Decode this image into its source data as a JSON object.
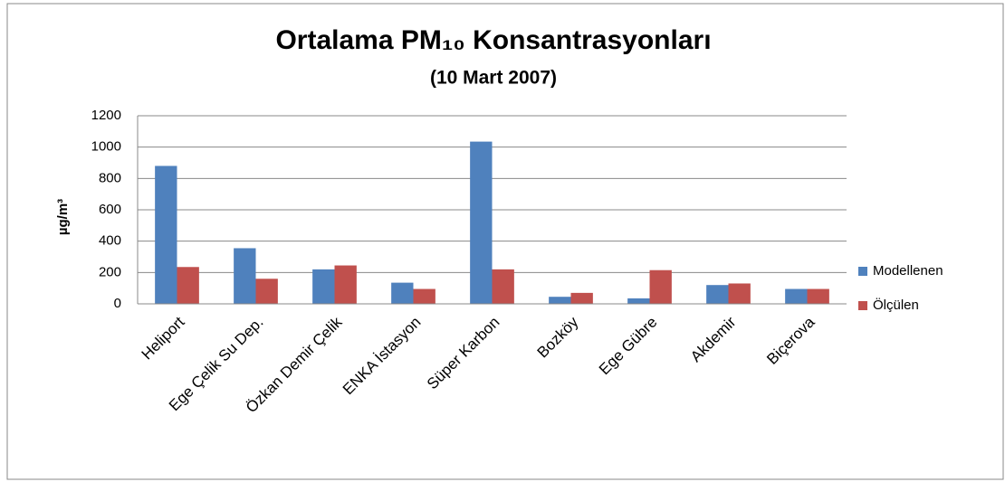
{
  "chart_data": {
    "type": "bar",
    "title": "Ortalama PM₁₀ Konsantrasyonları",
    "subtitle": "(10 Mart 2007)",
    "y_label": "µg/m³",
    "categories": [
      "Heliport",
      "Ege Çelik Su Dep.",
      "Özkan Demir Çelik",
      "ENKA İstasyon",
      "Süper Karbon",
      "Bozköy",
      "Ege Gübre",
      "Akdemir",
      "Biçerova"
    ],
    "series": [
      {
        "name": "Modellenen",
        "color": "#4f81bd",
        "values": [
          880,
          355,
          220,
          135,
          1035,
          45,
          35,
          120,
          95
        ]
      },
      {
        "name": "Ölçülen",
        "color": "#c0504d",
        "values": [
          235,
          160,
          245,
          95,
          220,
          70,
          215,
          130,
          95
        ]
      }
    ],
    "ylim": [
      0,
      1200
    ],
    "yticks": [
      0,
      200,
      400,
      600,
      800,
      1000,
      1200
    ],
    "grid": true,
    "legend": "right"
  }
}
